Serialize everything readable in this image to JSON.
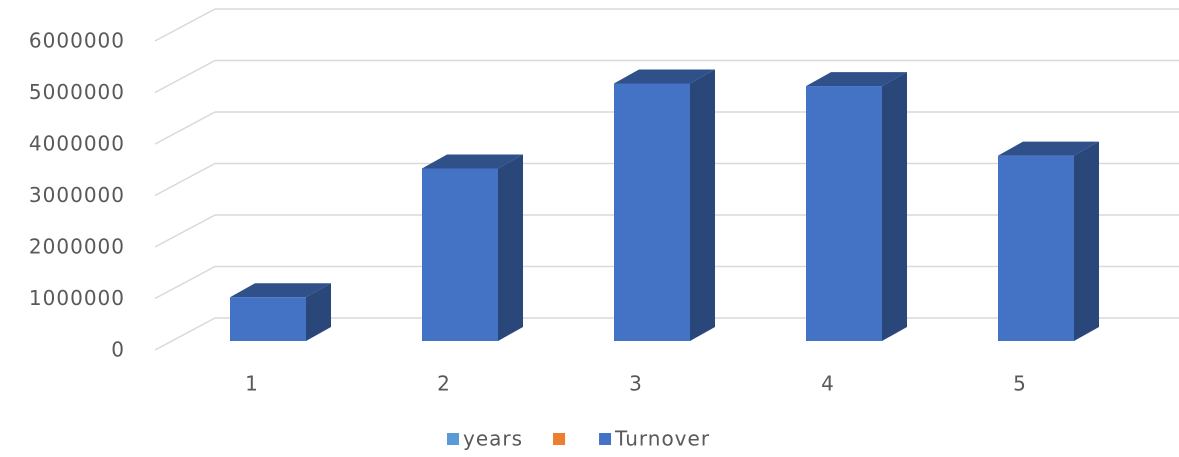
{
  "chart_data": {
    "type": "bar3d",
    "categories": [
      "1",
      "2",
      "3",
      "4",
      "5"
    ],
    "series": [
      {
        "name": "years",
        "color": "#5b9bd5",
        "values": [
          null,
          null,
          null,
          null,
          null
        ]
      },
      {
        "name": null,
        "color": "#ed7d31",
        "values": [
          null,
          null,
          null,
          null,
          null
        ]
      },
      {
        "name": "Turnover",
        "color": "#4472c4",
        "values": [
          850000,
          3350000,
          5000000,
          4950000,
          3600000
        ]
      }
    ],
    "ylim": [
      0,
      6000000
    ],
    "yticks": [
      0,
      1000000,
      2000000,
      3000000,
      4000000,
      5000000,
      6000000
    ],
    "grid": true,
    "legend": "bottom"
  }
}
